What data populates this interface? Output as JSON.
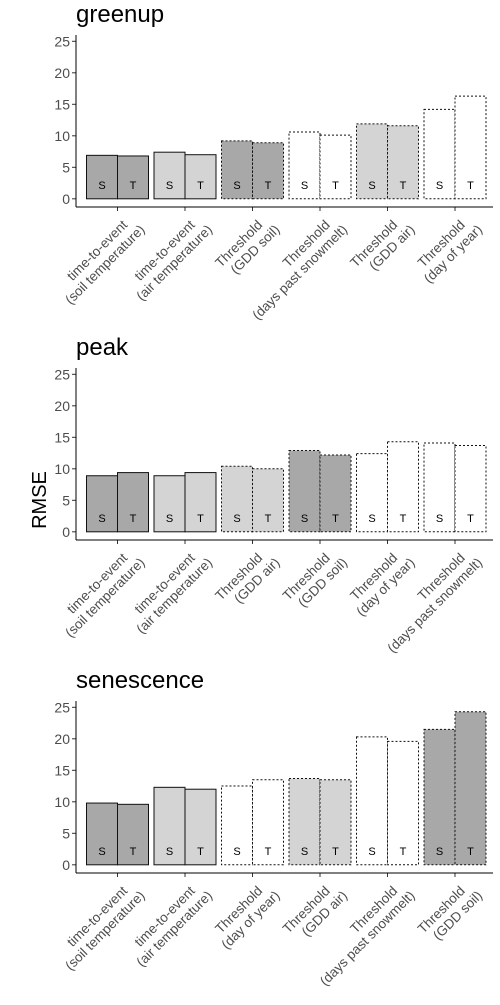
{
  "ylabel": "RMSE",
  "chart_data": [
    {
      "type": "bar",
      "title": "greenup",
      "ylabel": "RMSE",
      "ylim": [
        -1.3,
        26
      ],
      "yticks": [
        0,
        5,
        10,
        15,
        20,
        25
      ],
      "groups": [
        {
          "label_lines": [
            "time-to-event",
            "(soil temperature)"
          ],
          "fill": "#a8a8a8",
          "border": "solid",
          "bars": [
            {
              "label": "S",
              "value": 6.9
            },
            {
              "label": "T",
              "value": 6.8
            }
          ]
        },
        {
          "label_lines": [
            "time-to-event",
            "(air temperature)"
          ],
          "fill": "#d4d4d4",
          "border": "solid",
          "bars": [
            {
              "label": "S",
              "value": 7.4
            },
            {
              "label": "T",
              "value": 7.0
            }
          ]
        },
        {
          "label_lines": [
            "Threshold",
            "(GDD soil)"
          ],
          "fill": "#a8a8a8",
          "border": "dotted",
          "bars": [
            {
              "label": "S",
              "value": 9.2
            },
            {
              "label": "T",
              "value": 8.9
            }
          ]
        },
        {
          "label_lines": [
            "Threshold",
            "(days past snowmelt)"
          ],
          "fill": "#ffffff",
          "border": "dotted",
          "bars": [
            {
              "label": "S",
              "value": 10.6
            },
            {
              "label": "T",
              "value": 10.1
            }
          ]
        },
        {
          "label_lines": [
            "Threshold",
            "(GDD air)"
          ],
          "fill": "#d4d4d4",
          "border": "dotted",
          "bars": [
            {
              "label": "S",
              "value": 11.9
            },
            {
              "label": "T",
              "value": 11.6
            }
          ]
        },
        {
          "label_lines": [
            "Threshold",
            "(day of year)"
          ],
          "fill": "#ffffff",
          "border": "dotted",
          "bars": [
            {
              "label": "S",
              "value": 14.2
            },
            {
              "label": "T",
              "value": 16.3
            }
          ]
        }
      ]
    },
    {
      "type": "bar",
      "title": "peak",
      "ylabel": "RMSE",
      "ylim": [
        -1.3,
        26
      ],
      "yticks": [
        0,
        5,
        10,
        15,
        20,
        25
      ],
      "groups": [
        {
          "label_lines": [
            "time-to-event",
            "(soil temperature)"
          ],
          "fill": "#a8a8a8",
          "border": "solid",
          "bars": [
            {
              "label": "S",
              "value": 8.9
            },
            {
              "label": "T",
              "value": 9.4
            }
          ]
        },
        {
          "label_lines": [
            "time-to-event",
            "(air temperature)"
          ],
          "fill": "#d4d4d4",
          "border": "solid",
          "bars": [
            {
              "label": "S",
              "value": 8.9
            },
            {
              "label": "T",
              "value": 9.4
            }
          ]
        },
        {
          "label_lines": [
            "Threshold",
            "(GDD air)"
          ],
          "fill": "#d4d4d4",
          "border": "dotted",
          "bars": [
            {
              "label": "S",
              "value": 10.4
            },
            {
              "label": "T",
              "value": 10.0
            }
          ]
        },
        {
          "label_lines": [
            "Threshold",
            "(GDD soil)"
          ],
          "fill": "#a8a8a8",
          "border": "dotted",
          "bars": [
            {
              "label": "S",
              "value": 12.9
            },
            {
              "label": "T",
              "value": 12.2
            }
          ]
        },
        {
          "label_lines": [
            "Threshold",
            "(day of year)"
          ],
          "fill": "#ffffff",
          "border": "dotted",
          "bars": [
            {
              "label": "S",
              "value": 12.4
            },
            {
              "label": "T",
              "value": 14.3
            }
          ]
        },
        {
          "label_lines": [
            "Threshold",
            "(days past snowmelt)"
          ],
          "fill": "#ffffff",
          "border": "dotted",
          "bars": [
            {
              "label": "S",
              "value": 14.1
            },
            {
              "label": "T",
              "value": 13.7
            }
          ]
        }
      ]
    },
    {
      "type": "bar",
      "title": "senescence",
      "ylabel": "RMSE",
      "ylim": [
        -1.3,
        26
      ],
      "yticks": [
        0,
        5,
        10,
        15,
        20,
        25
      ],
      "groups": [
        {
          "label_lines": [
            "time-to-event",
            "(soil temperature)"
          ],
          "fill": "#a8a8a8",
          "border": "solid",
          "bars": [
            {
              "label": "S",
              "value": 9.8
            },
            {
              "label": "T",
              "value": 9.6
            }
          ]
        },
        {
          "label_lines": [
            "time-to-event",
            "(air temperature)"
          ],
          "fill": "#d4d4d4",
          "border": "solid",
          "bars": [
            {
              "label": "S",
              "value": 12.3
            },
            {
              "label": "T",
              "value": 12.0
            }
          ]
        },
        {
          "label_lines": [
            "Threshold",
            "(day of year)"
          ],
          "fill": "#ffffff",
          "border": "dotted",
          "bars": [
            {
              "label": "S",
              "value": 12.5
            },
            {
              "label": "T",
              "value": 13.5
            }
          ]
        },
        {
          "label_lines": [
            "Threshold",
            "(GDD air)"
          ],
          "fill": "#d4d4d4",
          "border": "dotted",
          "bars": [
            {
              "label": "S",
              "value": 13.7
            },
            {
              "label": "T",
              "value": 13.5
            }
          ]
        },
        {
          "label_lines": [
            "Threshold",
            "(days past snowmelt)"
          ],
          "fill": "#ffffff",
          "border": "dotted",
          "bars": [
            {
              "label": "S",
              "value": 20.3
            },
            {
              "label": "T",
              "value": 19.6
            }
          ]
        },
        {
          "label_lines": [
            "Threshold",
            "(GDD soil)"
          ],
          "fill": "#a8a8a8",
          "border": "dotted",
          "bars": [
            {
              "label": "S",
              "value": 21.5
            },
            {
              "label": "T",
              "value": 24.3
            }
          ]
        }
      ]
    }
  ]
}
